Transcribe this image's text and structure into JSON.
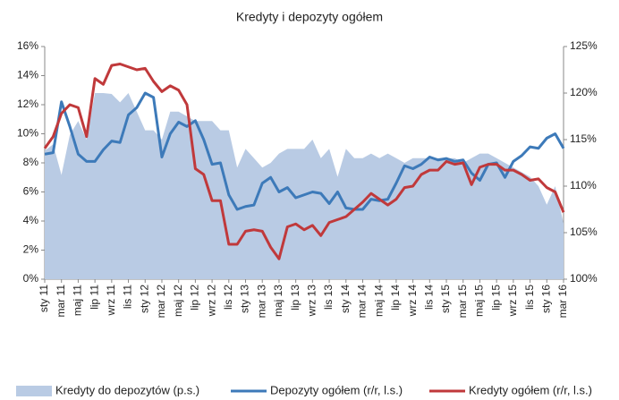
{
  "chart_data": {
    "type": "line",
    "title": "Kredyty i depozyty ogółem",
    "categories": [
      "sty 11",
      null,
      "mar 11",
      null,
      "maj 11",
      null,
      "lip 11",
      null,
      "wrz 11",
      null,
      "lis 11",
      null,
      "sty 12",
      null,
      "mar 12",
      null,
      "maj 12",
      null,
      "lip 12",
      null,
      "wrz 12",
      null,
      "lis 12",
      null,
      "sty 13",
      null,
      "mar 13",
      null,
      "maj 13",
      null,
      "lip 13",
      null,
      "wrz 13",
      null,
      "lis 13",
      null,
      "sty 14",
      null,
      "mar 14",
      null,
      "maj 14",
      null,
      "lip 14",
      null,
      "wrz 14",
      null,
      "lis 14",
      null,
      "sty 15",
      null,
      "mar 15",
      null,
      "maj 15",
      null,
      "lip 15",
      null,
      "wrz 15",
      null,
      "lis 15",
      null,
      "sty 16",
      null,
      "mar 16"
    ],
    "series": [
      {
        "name": "Kredyty do depozytów (p.s.)",
        "color": "#b9cbe4",
        "axis": "y2",
        "kind": "area",
        "values": [
          113.8,
          114.5,
          111.2,
          115.5,
          117.0,
          115.0,
          120.0,
          120.0,
          119.9,
          119.0,
          120.0,
          118.0,
          116.0,
          116.0,
          115.0,
          118.0,
          118.0,
          117.5,
          117.0,
          117.0,
          117.0,
          116.0,
          116.0,
          112.0,
          114.0,
          113.0,
          112.0,
          112.5,
          113.5,
          114.0,
          114.0,
          114.0,
          115.0,
          113.0,
          114.0,
          111.0,
          114.0,
          113.0,
          113.0,
          113.5,
          113.0,
          113.5,
          113.0,
          112.5,
          113.0,
          113.0,
          113.0,
          113.0,
          113.0,
          113.0,
          112.5,
          113.0,
          113.5,
          113.5,
          113.0,
          112.5,
          112.0,
          111.5,
          111.0,
          110.0,
          108.0,
          110.0,
          106.0
        ]
      },
      {
        "name": "Depozyty ogółem (r/r, l.s.)",
        "color": "#3d7ab9",
        "values": [
          8.6,
          8.7,
          12.2,
          10.5,
          8.6,
          8.1,
          8.1,
          8.9,
          9.5,
          9.4,
          11.3,
          11.8,
          12.8,
          12.5,
          8.4,
          10.0,
          10.8,
          10.5,
          10.9,
          9.6,
          7.9,
          8.0,
          5.8,
          4.8,
          5.0,
          5.1,
          6.6,
          7.0,
          6.0,
          6.3,
          5.6,
          5.8,
          6.0,
          5.9,
          5.2,
          6.0,
          4.9,
          4.8,
          4.8,
          5.5,
          5.4,
          5.5,
          6.6,
          7.8,
          7.6,
          7.9,
          8.4,
          8.2,
          8.3,
          8.1,
          8.2,
          7.3,
          6.8,
          7.9,
          8.0,
          7.0,
          8.1,
          8.5,
          9.1,
          9.0,
          9.7,
          10.0,
          9.0
        ]
      },
      {
        "name": "Kredyty ogółem (r/r, l.s.)",
        "color": "#c0393b",
        "values": [
          9.0,
          9.8,
          11.4,
          12.0,
          11.8,
          9.8,
          13.8,
          13.4,
          14.7,
          14.8,
          14.6,
          14.4,
          14.5,
          13.6,
          12.9,
          13.3,
          13.0,
          12.0,
          7.6,
          7.2,
          5.4,
          5.4,
          2.4,
          2.4,
          3.3,
          3.4,
          3.3,
          2.2,
          1.4,
          3.6,
          3.8,
          3.4,
          3.7,
          3.0,
          3.9,
          4.1,
          4.3,
          4.8,
          5.3,
          5.9,
          5.5,
          5.1,
          5.5,
          6.3,
          6.4,
          7.2,
          7.5,
          7.5,
          8.1,
          7.9,
          8.0,
          6.5,
          7.7,
          7.9,
          7.9,
          7.5,
          7.5,
          7.2,
          6.8,
          6.9,
          6.3,
          6.0,
          4.6
        ]
      }
    ],
    "ylim": [
      0,
      16
    ],
    "yticks": [
      {
        "value": 0,
        "label": "0%"
      },
      {
        "value": 2,
        "label": "2%"
      },
      {
        "value": 4,
        "label": "4%"
      },
      {
        "value": 6,
        "label": "6%"
      },
      {
        "value": 8,
        "label": "8%"
      },
      {
        "value": 10,
        "label": "10%"
      },
      {
        "value": 12,
        "label": "12%"
      },
      {
        "value": 14,
        "label": "14%"
      },
      {
        "value": 16,
        "label": "16%"
      }
    ],
    "y2lim": [
      100,
      125
    ],
    "y2ticks": [
      {
        "value": 100,
        "label": "100%"
      },
      {
        "value": 105,
        "label": "105%"
      },
      {
        "value": 110,
        "label": "110%"
      },
      {
        "value": 115,
        "label": "115%"
      },
      {
        "value": 120,
        "label": "120%"
      },
      {
        "value": 125,
        "label": "125%"
      }
    ],
    "legend": "bottom"
  }
}
